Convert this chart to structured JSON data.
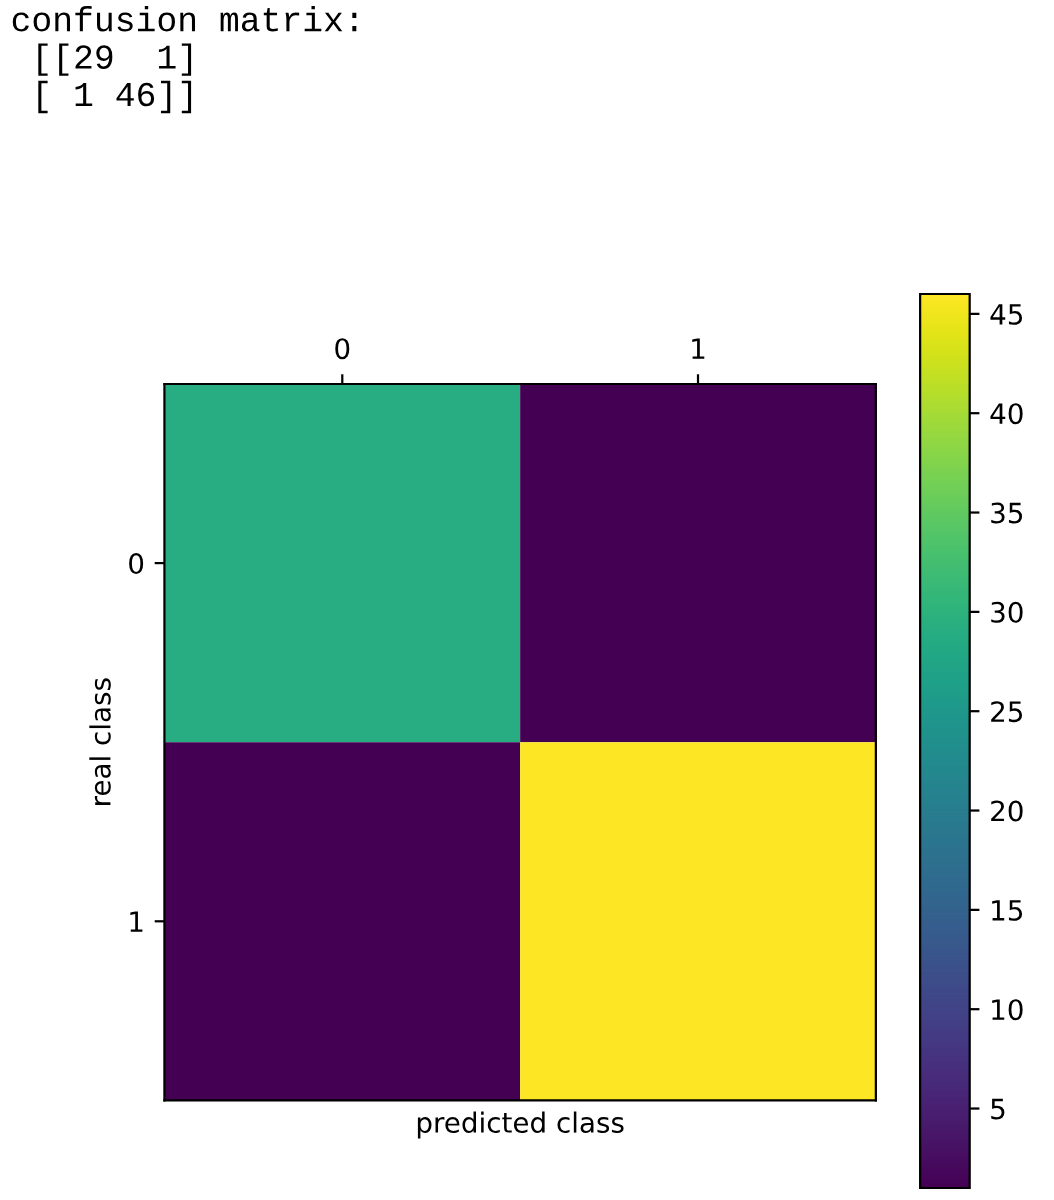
{
  "chart_data": {
    "type": "heatmap",
    "annotations": [
      "confusion matrix:\n [[29  1]\n [ 1 46]]"
    ],
    "xlabel": "predicted class",
    "ylabel": "real class",
    "categories": [
      "0",
      "1"
    ],
    "y_categories": [
      "0",
      "1"
    ],
    "cells": [
      [
        29,
        1
      ],
      [
        1,
        46
      ]
    ],
    "clim": [
      1,
      46
    ],
    "cticks": [
      5,
      10,
      15,
      20,
      25,
      30,
      35,
      40,
      45
    ],
    "grid": false
  }
}
